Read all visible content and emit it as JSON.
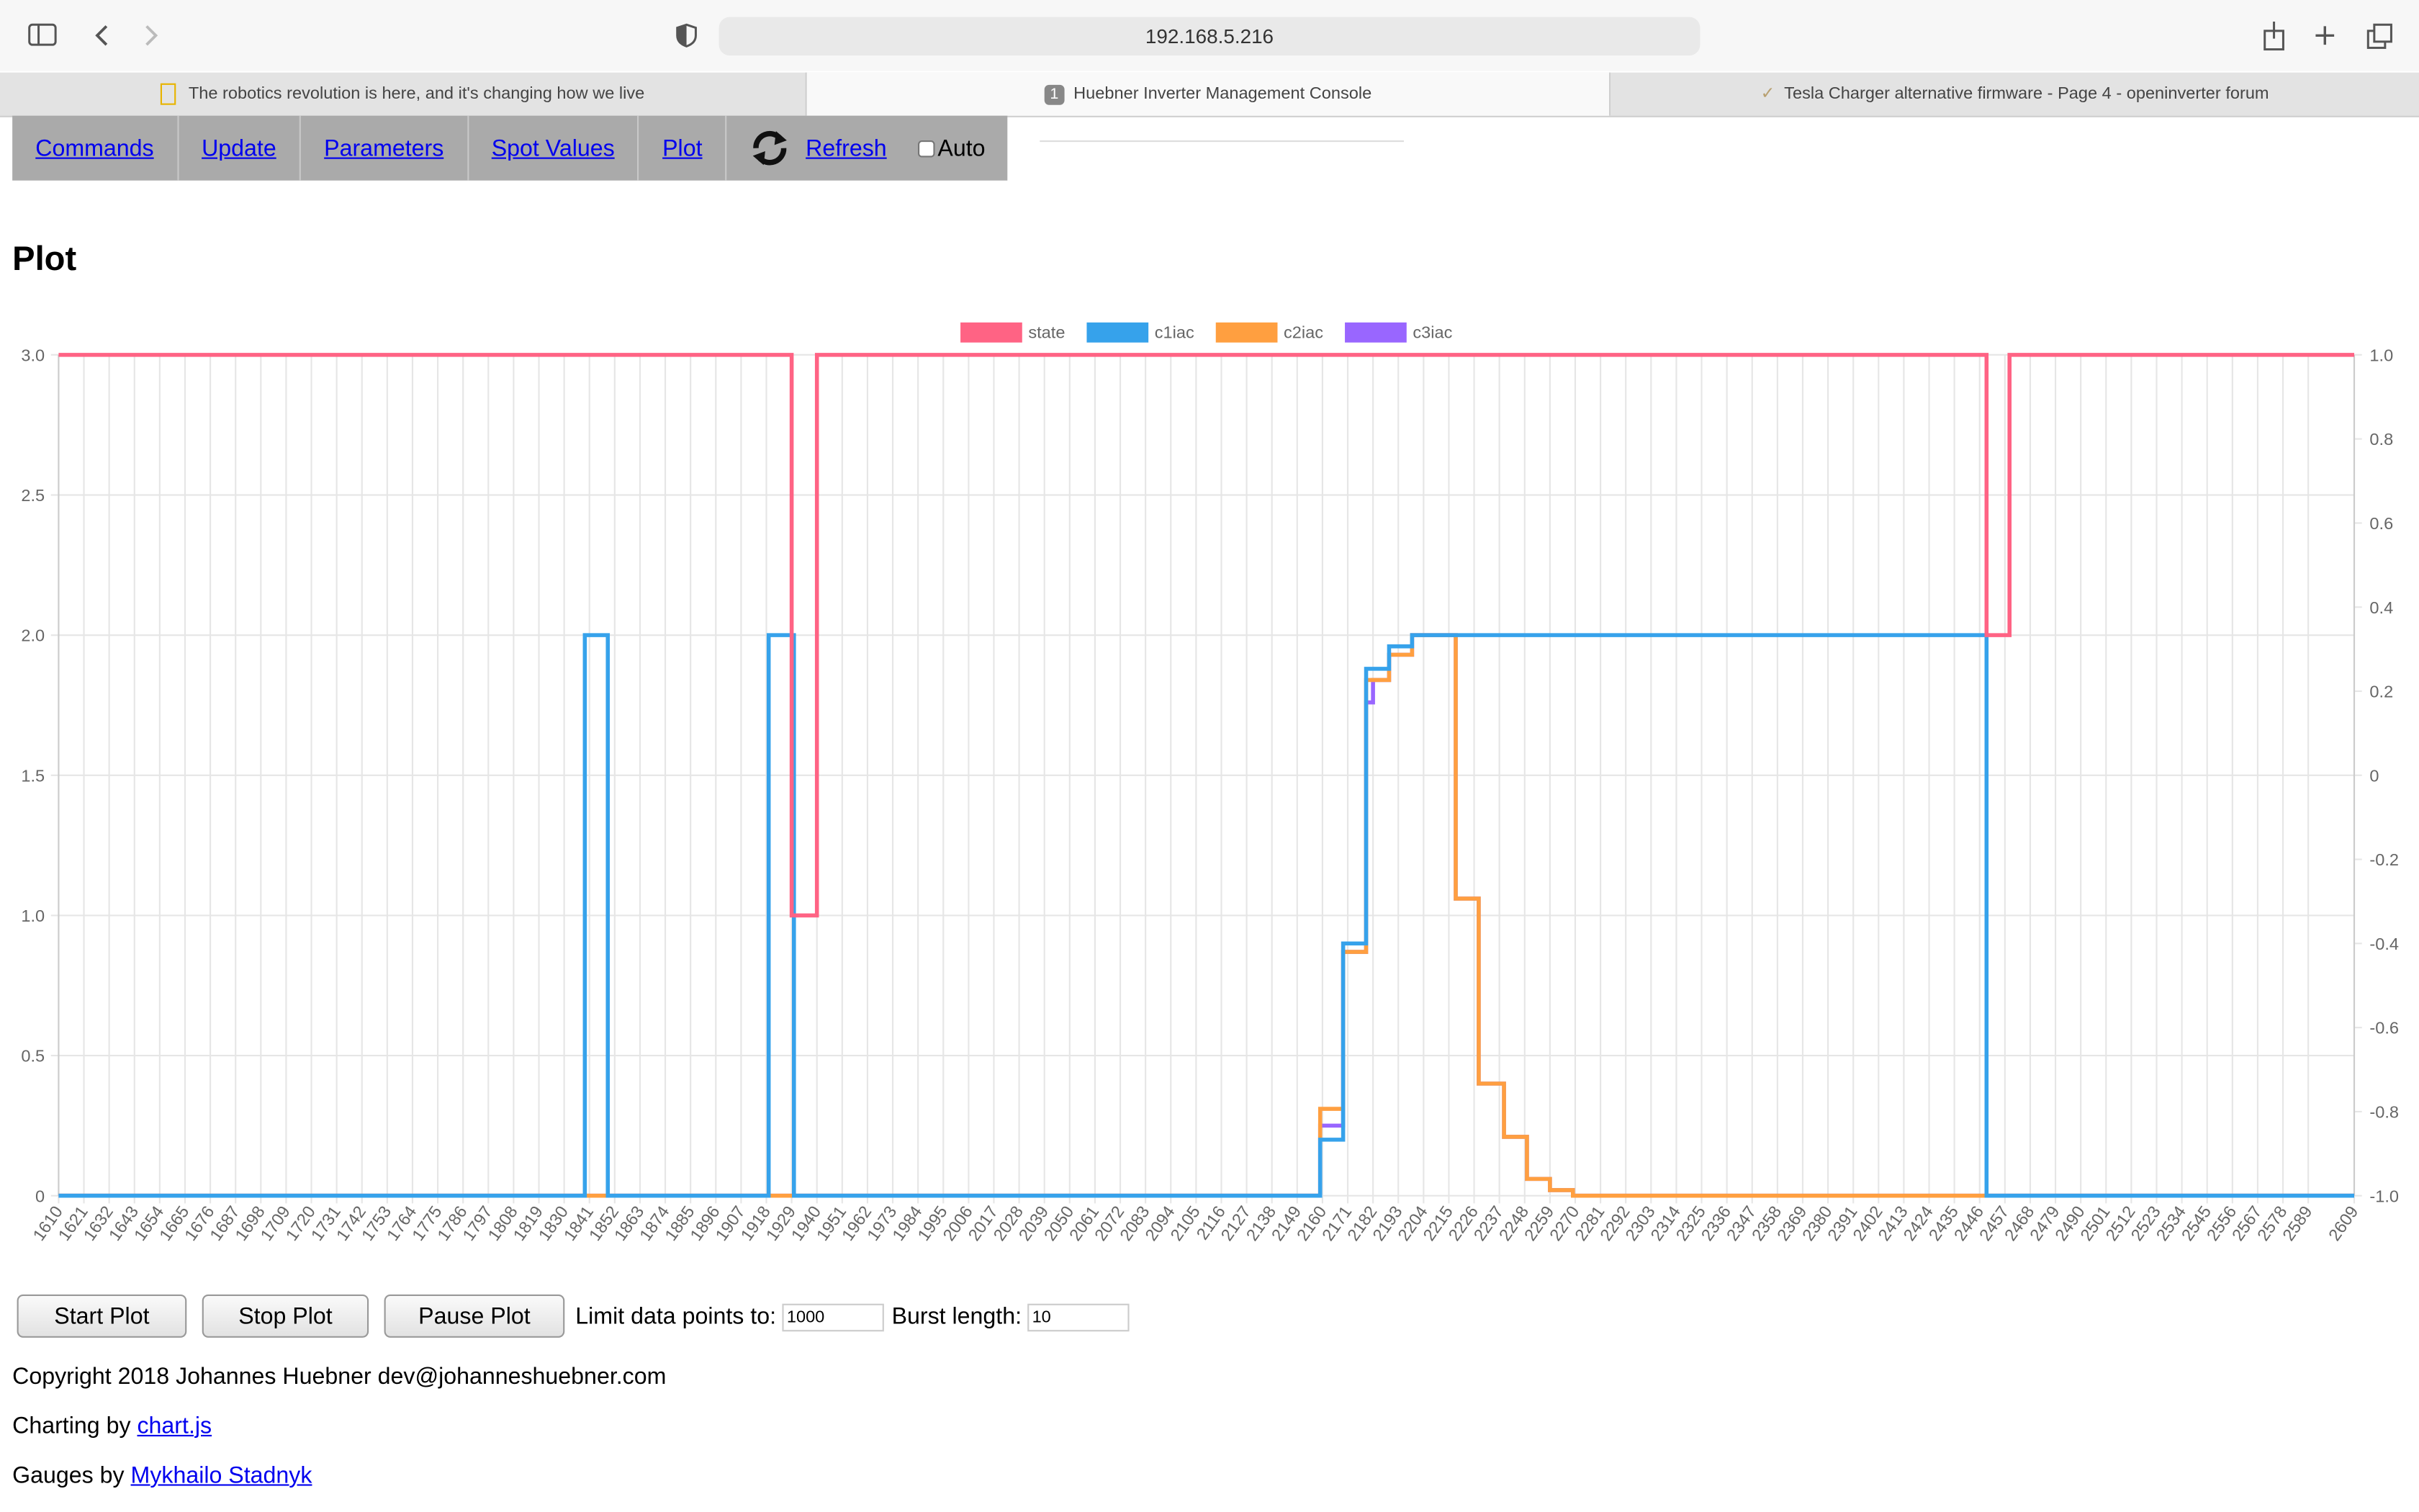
{
  "browser": {
    "url": "192.168.5.216",
    "tabs": [
      {
        "title": "The robotics revolution is here, and it's changing how we live"
      },
      {
        "badge": "1",
        "title": "Huebner Inverter Management Console"
      },
      {
        "title": "Tesla Charger alternative firmware - Page 4 - openinverter forum"
      }
    ]
  },
  "nav": {
    "commands": "Commands",
    "update": "Update",
    "parameters": "Parameters",
    "spot_values": "Spot Values",
    "plot": "Plot",
    "refresh": "Refresh",
    "auto": "Auto"
  },
  "heading": "Plot",
  "chart_data": {
    "type": "line",
    "stepped": true,
    "grid": true,
    "legend": "top",
    "xlim": [
      1610,
      2609
    ],
    "xticks": [
      1610,
      1621,
      1632,
      1643,
      1654,
      1665,
      1676,
      1687,
      1698,
      1709,
      1720,
      1731,
      1742,
      1753,
      1764,
      1775,
      1786,
      1797,
      1808,
      1819,
      1830,
      1841,
      1852,
      1863,
      1874,
      1885,
      1896,
      1907,
      1918,
      1929,
      1940,
      1951,
      1962,
      1973,
      1984,
      1995,
      2006,
      2017,
      2028,
      2039,
      2050,
      2061,
      2072,
      2083,
      2094,
      2105,
      2116,
      2127,
      2138,
      2149,
      2160,
      2171,
      2182,
      2193,
      2204,
      2215,
      2226,
      2237,
      2248,
      2259,
      2270,
      2281,
      2292,
      2303,
      2314,
      2325,
      2336,
      2347,
      2358,
      2369,
      2380,
      2391,
      2402,
      2413,
      2424,
      2435,
      2446,
      2457,
      2468,
      2479,
      2490,
      2501,
      2512,
      2523,
      2534,
      2545,
      2556,
      2567,
      2578,
      2589,
      2609
    ],
    "ylim": [
      0,
      3
    ],
    "yticks": [
      0,
      0.5,
      {
        "value": 1,
        "label": "1.0"
      },
      1.5,
      {
        "value": 2,
        "label": "2.0"
      },
      2.5,
      {
        "value": 3,
        "label": "3.0"
      }
    ],
    "y2lim": [
      -1,
      1
    ],
    "y2ticks": [
      {
        "value": -1,
        "label": "-1.0"
      },
      -0.8,
      -0.6,
      -0.4,
      -0.2,
      0,
      0.2,
      0.4,
      0.6,
      0.8,
      {
        "value": 1,
        "label": "1.0"
      }
    ],
    "series": [
      {
        "name": "state",
        "color": "#ff6384",
        "x": [
          1610,
          1929,
          1940,
          2449,
          2459,
          2609
        ],
        "values": [
          3,
          1,
          3,
          2,
          3,
          3
        ]
      },
      {
        "name": "c1iac",
        "color": "#36a2eb",
        "x": [
          1610,
          1839,
          1849,
          1919,
          1930,
          2159,
          2169,
          2179,
          2189,
          2199,
          2449,
          2609
        ],
        "values": [
          0,
          2,
          0,
          2,
          0,
          0.2,
          0.9,
          1.88,
          1.96,
          2,
          0,
          0
        ]
      },
      {
        "name": "c2iac",
        "color": "#ff9f40",
        "x": [
          1610,
          2159,
          2169,
          2179,
          2189,
          2199,
          2218,
          2228,
          2239,
          2249,
          2259,
          2269,
          2609
        ],
        "values": [
          0,
          0.31,
          0.87,
          1.84,
          1.93,
          2,
          1.06,
          0.4,
          0.21,
          0.06,
          0.02,
          0,
          0
        ]
      },
      {
        "name": "c3iac",
        "color": "#9966ff",
        "x": [
          1610,
          2159,
          2169,
          2179,
          2182,
          2189,
          2199,
          2218,
          2228,
          2239,
          2249,
          2259,
          2269,
          2609
        ],
        "values": [
          0,
          0.25,
          0.87,
          1.76,
          1.84,
          1.93,
          2,
          1.06,
          0.4,
          0.21,
          0.06,
          0.02,
          0,
          0
        ]
      }
    ]
  },
  "controls": {
    "start": "Start Plot",
    "stop": "Stop Plot",
    "pause": "Pause Plot",
    "limit_label": "Limit data points to:",
    "limit_value": "1000",
    "burst_label": "Burst length:",
    "burst_value": "10"
  },
  "footer": {
    "copyright": "Copyright 2018 Johannes Huebner dev@johanneshuebner.com",
    "charting_prefix": "Charting by",
    "charting_link": "chart.js",
    "gauges_prefix": "Gauges by",
    "gauges_link": "Mykhailo Stadnyk"
  }
}
